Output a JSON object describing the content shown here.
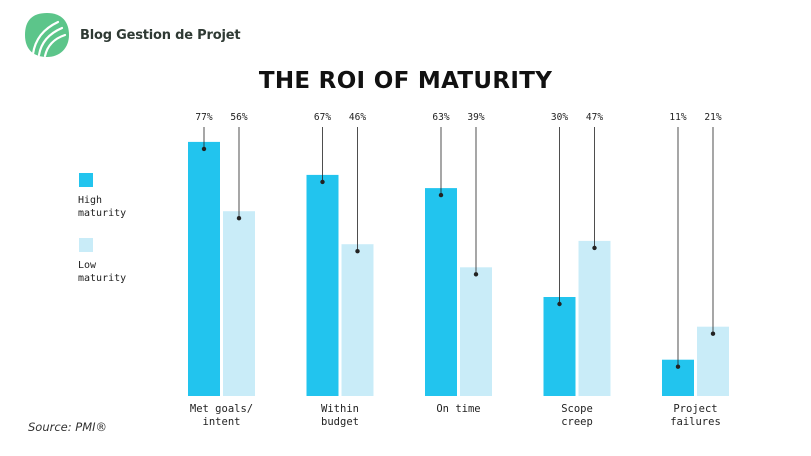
{
  "brand": {
    "name": "Blog Gestion de Projet",
    "logo_icon": "leaf-swirl-logo-icon",
    "logo_color": "#5cc58a"
  },
  "source": "Source: PMI®",
  "chart_data": {
    "type": "bar",
    "title": "THE ROI OF MATURITY",
    "xlabel": "",
    "ylabel": "",
    "ylim": [
      0,
      80
    ],
    "grid": false,
    "legend": "left",
    "value_suffix": "%",
    "categories": [
      [
        "Met goals/",
        "intent"
      ],
      [
        "Within",
        "budget"
      ],
      [
        "On time"
      ],
      [
        "Scope",
        "creep"
      ],
      [
        "Project",
        "failures"
      ]
    ],
    "series": [
      {
        "name": "High maturity",
        "legend_lines": [
          "High",
          "maturity"
        ],
        "color": "#22c4ee",
        "values": [
          77,
          67,
          63,
          30,
          11
        ]
      },
      {
        "name": "Low maturity",
        "legend_lines": [
          "Low",
          "maturity"
        ],
        "color": "#c9ecf8",
        "values": [
          56,
          46,
          39,
          47,
          21
        ]
      }
    ]
  }
}
